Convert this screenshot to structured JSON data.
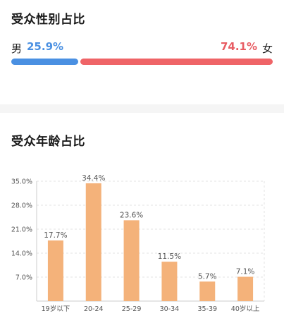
{
  "gender": {
    "title": "受众性别占比",
    "male_label": "男",
    "male_pct": "25.9%",
    "female_pct": "74.1%",
    "female_label": "女",
    "male_share": 25.9,
    "female_share": 74.1,
    "male_color": "#4a90e2",
    "female_color": "#ef6467"
  },
  "age": {
    "title": "受众年龄占比"
  },
  "chart_data": {
    "type": "bar",
    "categories": [
      "19岁以下",
      "20-24",
      "25-29",
      "30-34",
      "35-39",
      "40岁以上"
    ],
    "values": [
      17.7,
      34.4,
      23.6,
      11.5,
      5.7,
      7.1
    ],
    "data_labels": [
      "17.7%",
      "34.4%",
      "23.6%",
      "11.5%",
      "5.7%",
      "7.1%"
    ],
    "y_ticks": [
      7.0,
      14.0,
      21.0,
      28.0,
      35.0
    ],
    "y_tick_labels": [
      "7.0%",
      "14.0%",
      "21.0%",
      "28.0%",
      "35.0%"
    ],
    "ylim": [
      0,
      35
    ],
    "grid": true,
    "bar_color": "#f4b27a",
    "title": "",
    "xlabel": "",
    "ylabel": ""
  }
}
